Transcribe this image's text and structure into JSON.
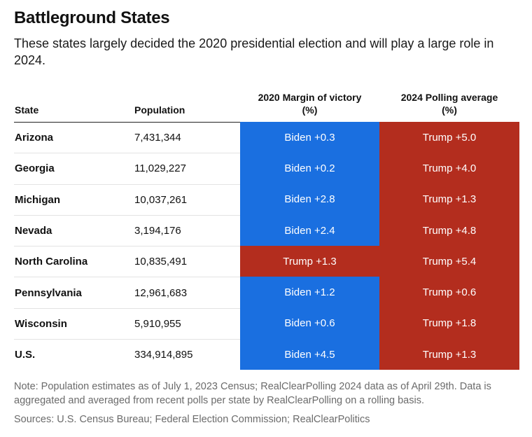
{
  "title": "Battleground States",
  "subtitle": "These states largely decided the 2020 presidential election and will play a large role in 2024.",
  "table": {
    "headers": {
      "state": "State",
      "population": "Population",
      "margin_line1": "2020 Margin of victory",
      "margin_line2": "(%)",
      "poll_line1": "2024 Polling average",
      "poll_line2": "(%)"
    },
    "rows": [
      {
        "state": "Arizona",
        "population": "7,431,344",
        "margin": "Biden +0.3",
        "margin_party": "blue",
        "poll": "Trump +5.0",
        "poll_party": "red"
      },
      {
        "state": "Georgia",
        "population": "11,029,227",
        "margin": "Biden +0.2",
        "margin_party": "blue",
        "poll": "Trump +4.0",
        "poll_party": "red"
      },
      {
        "state": "Michigan",
        "population": "10,037,261",
        "margin": "Biden +2.8",
        "margin_party": "blue",
        "poll": "Trump +1.3",
        "poll_party": "red"
      },
      {
        "state": "Nevada",
        "population": "3,194,176",
        "margin": "Biden +2.4",
        "margin_party": "blue",
        "poll": "Trump +4.8",
        "poll_party": "red"
      },
      {
        "state": "North Carolina",
        "population": "10,835,491",
        "margin": "Trump +1.3",
        "margin_party": "red",
        "poll": "Trump +5.4",
        "poll_party": "red"
      },
      {
        "state": "Pennsylvania",
        "population": "12,961,683",
        "margin": "Biden +1.2",
        "margin_party": "blue",
        "poll": "Trump +0.6",
        "poll_party": "red"
      },
      {
        "state": "Wisconsin",
        "population": "5,910,955",
        "margin": "Biden +0.6",
        "margin_party": "blue",
        "poll": "Trump +1.8",
        "poll_party": "red"
      },
      {
        "state": "U.S.",
        "population": "334,914,895",
        "margin": "Biden +4.5",
        "margin_party": "blue",
        "poll": "Trump +1.3",
        "poll_party": "red"
      }
    ]
  },
  "colors": {
    "blue": "#1a6fe0",
    "red": "#b32d1e"
  },
  "note": "Note: Population estimates as of July 1, 2023 Census; RealClearPolling 2024 data as of April 29th. Data is aggregated and averaged from recent polls per state by RealClearPolling on a rolling basis.",
  "sources": "Sources: U.S. Census Bureau; Federal Election Commission; RealClearPolitics"
}
